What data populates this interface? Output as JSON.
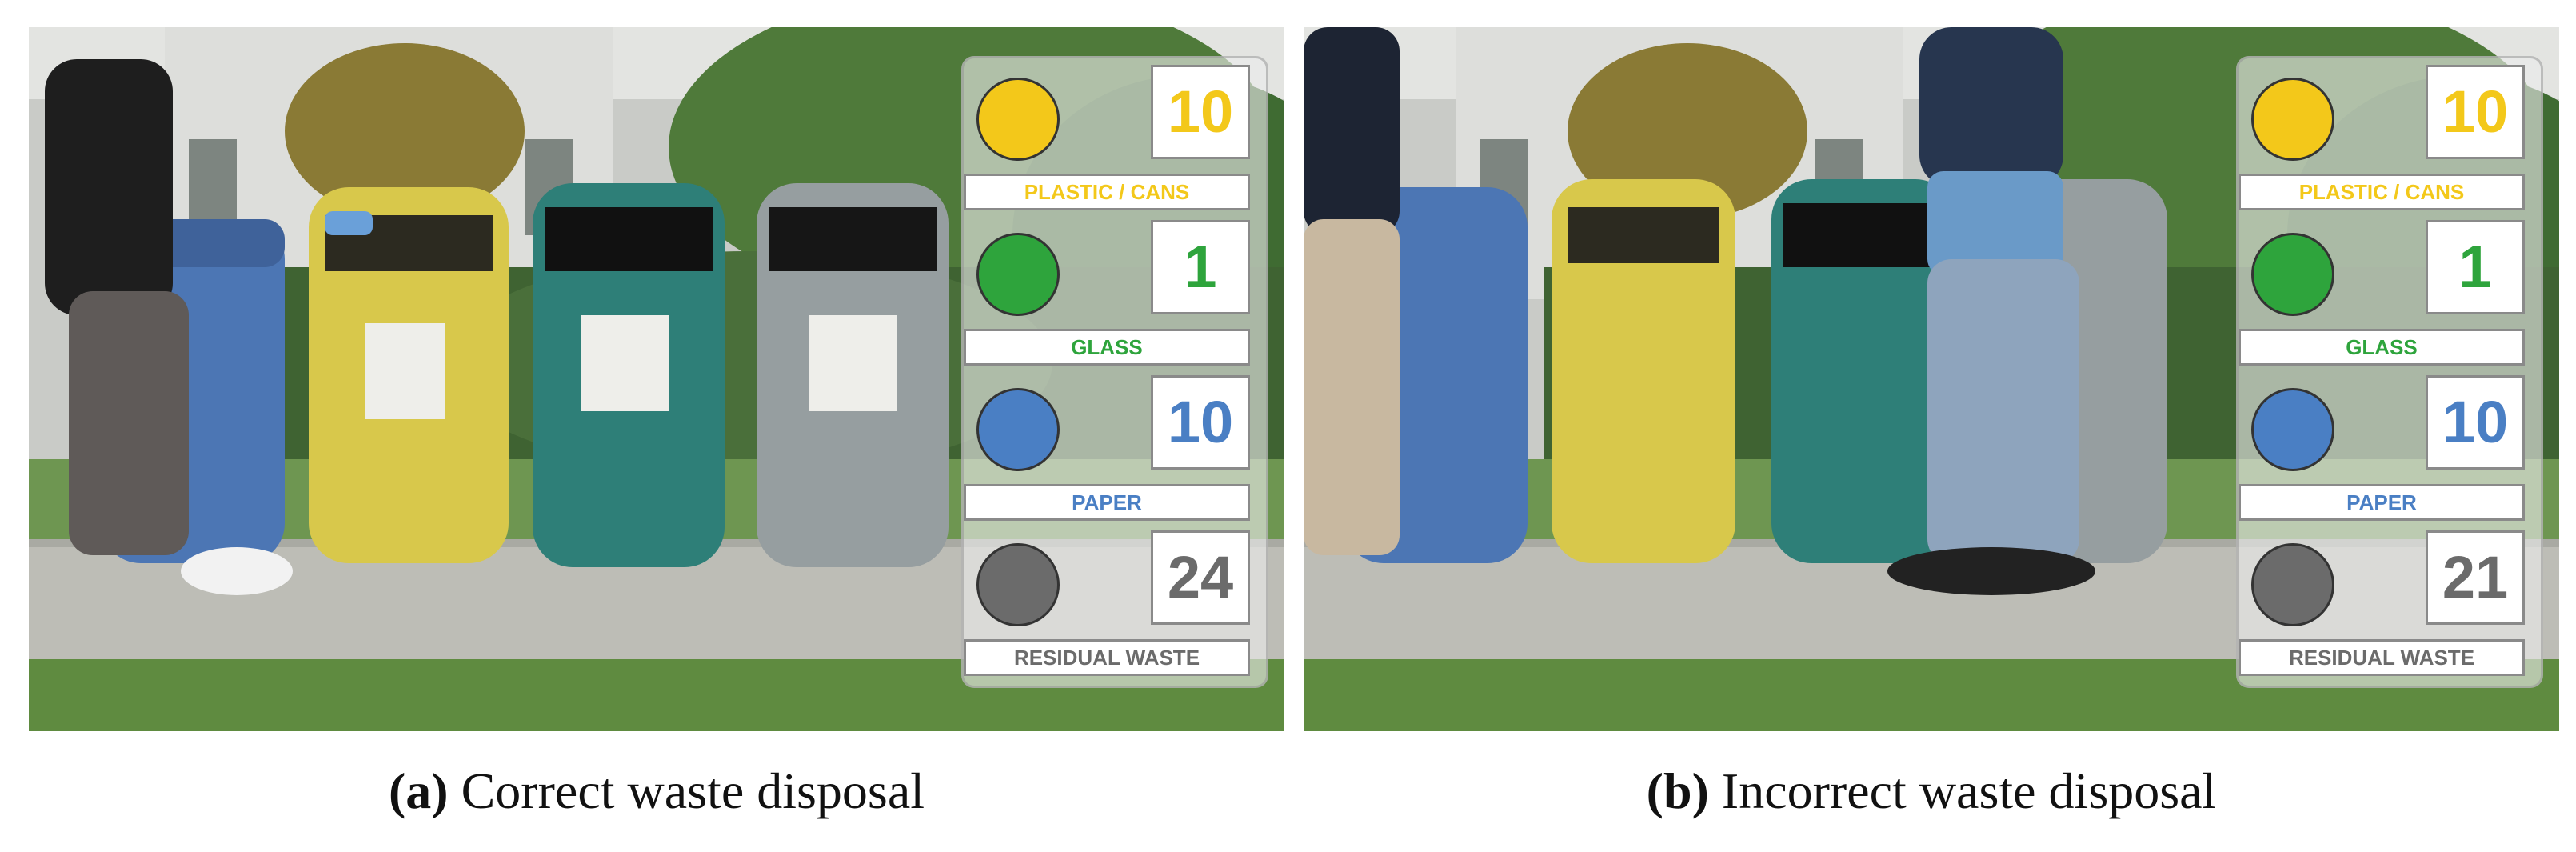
{
  "colors": {
    "plastic": "#f3c81a",
    "glass": "#2ea43c",
    "paper": "#4a7fc4",
    "residual": "#6b6b6b"
  },
  "panels": [
    {
      "scene_description_hidden": "",
      "overlay": {
        "plastic": {
          "count": "10",
          "label": "PLASTIC / CANS",
          "icon": "yellow-bin-dot"
        },
        "glass": {
          "count": "1",
          "label": "GLASS",
          "icon": "green-bin-dot"
        },
        "paper": {
          "count": "10",
          "label": "PAPER",
          "icon": "blue-bin-dot"
        },
        "residual": {
          "count": "24",
          "label": "RESIDUAL WASTE",
          "icon": "gray-bin-dot"
        }
      },
      "caption": {
        "tag": "(a)",
        "text": " Correct waste disposal"
      }
    },
    {
      "scene_description_hidden": "",
      "overlay": {
        "plastic": {
          "count": "10",
          "label": "PLASTIC / CANS",
          "icon": "yellow-bin-dot"
        },
        "glass": {
          "count": "1",
          "label": "GLASS",
          "icon": "green-bin-dot"
        },
        "paper": {
          "count": "10",
          "label": "PAPER",
          "icon": "blue-bin-dot"
        },
        "residual": {
          "count": "21",
          "label": "RESIDUAL WASTE",
          "icon": "gray-bin-dot"
        }
      },
      "caption": {
        "tag": "(b)",
        "text": " Incorrect waste disposal"
      }
    }
  ]
}
